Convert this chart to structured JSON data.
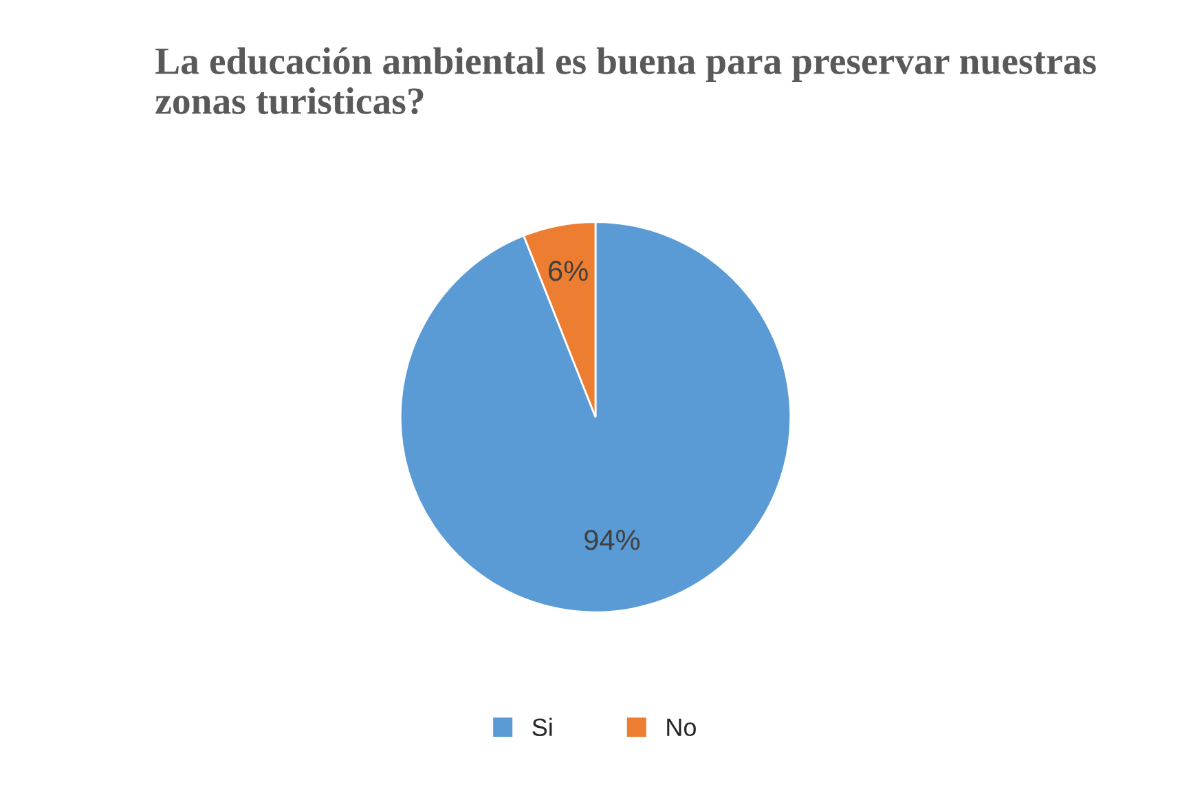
{
  "chart_data": {
    "type": "pie",
    "title": "La educación ambiental es buena para preservar nuestras zonas turisticas?",
    "categories": [
      "Si",
      "No"
    ],
    "values": [
      94,
      6
    ],
    "colors": [
      "#5b9bd5",
      "#ed7d31"
    ],
    "value_labels": [
      "94%",
      "6%"
    ],
    "legend": "bottom"
  }
}
